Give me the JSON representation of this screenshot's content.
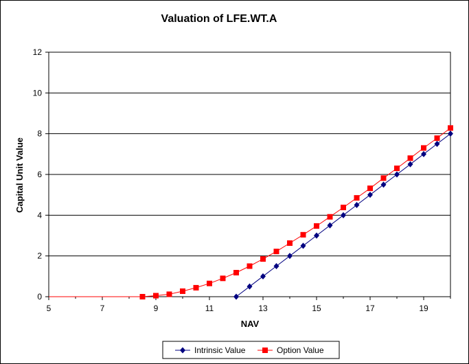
{
  "chart_data": {
    "type": "line",
    "title": "Valuation of LFE.WT.A",
    "xlabel": "NAV",
    "ylabel": "Capital Unit Value",
    "xlim": [
      5,
      20
    ],
    "ylim": [
      0,
      12
    ],
    "x_ticks": [
      5,
      7,
      9,
      11,
      13,
      15,
      17,
      19
    ],
    "y_ticks": [
      0,
      2,
      4,
      6,
      8,
      10,
      12
    ],
    "grid": "horizontal",
    "legend_position": "bottom",
    "series": [
      {
        "name": "Intrinsic Value",
        "color": "#000080",
        "marker": "diamond",
        "x": [
          12,
          12.5,
          13,
          13.5,
          14,
          14.5,
          15,
          15.5,
          16,
          16.5,
          17,
          17.5,
          18,
          18.5,
          19,
          19.5,
          20
        ],
        "values": [
          0,
          0.5,
          1,
          1.5,
          2,
          2.5,
          3,
          3.5,
          4,
          4.5,
          5,
          5.5,
          6,
          6.5,
          7,
          7.5,
          8
        ]
      },
      {
        "name": "Option Value",
        "color": "#ff0000",
        "marker": "square",
        "x": [
          5,
          5.5,
          6,
          6.5,
          7,
          7.5,
          8,
          8.5,
          9,
          9.5,
          10,
          10.5,
          11,
          11.5,
          12,
          12.5,
          13,
          13.5,
          14,
          14.5,
          15,
          15.5,
          16,
          16.5,
          17,
          17.5,
          18,
          18.5,
          19,
          19.5,
          20
        ],
        "values": [
          0,
          0,
          0,
          0,
          0,
          0,
          0,
          0,
          0.05,
          0.12,
          0.27,
          0.44,
          0.65,
          0.9,
          1.18,
          1.5,
          1.85,
          2.22,
          2.63,
          3.04,
          3.47,
          3.92,
          4.38,
          4.85,
          5.32,
          5.82,
          6.3,
          6.8,
          7.3,
          7.78,
          8.28
        ]
      }
    ]
  }
}
